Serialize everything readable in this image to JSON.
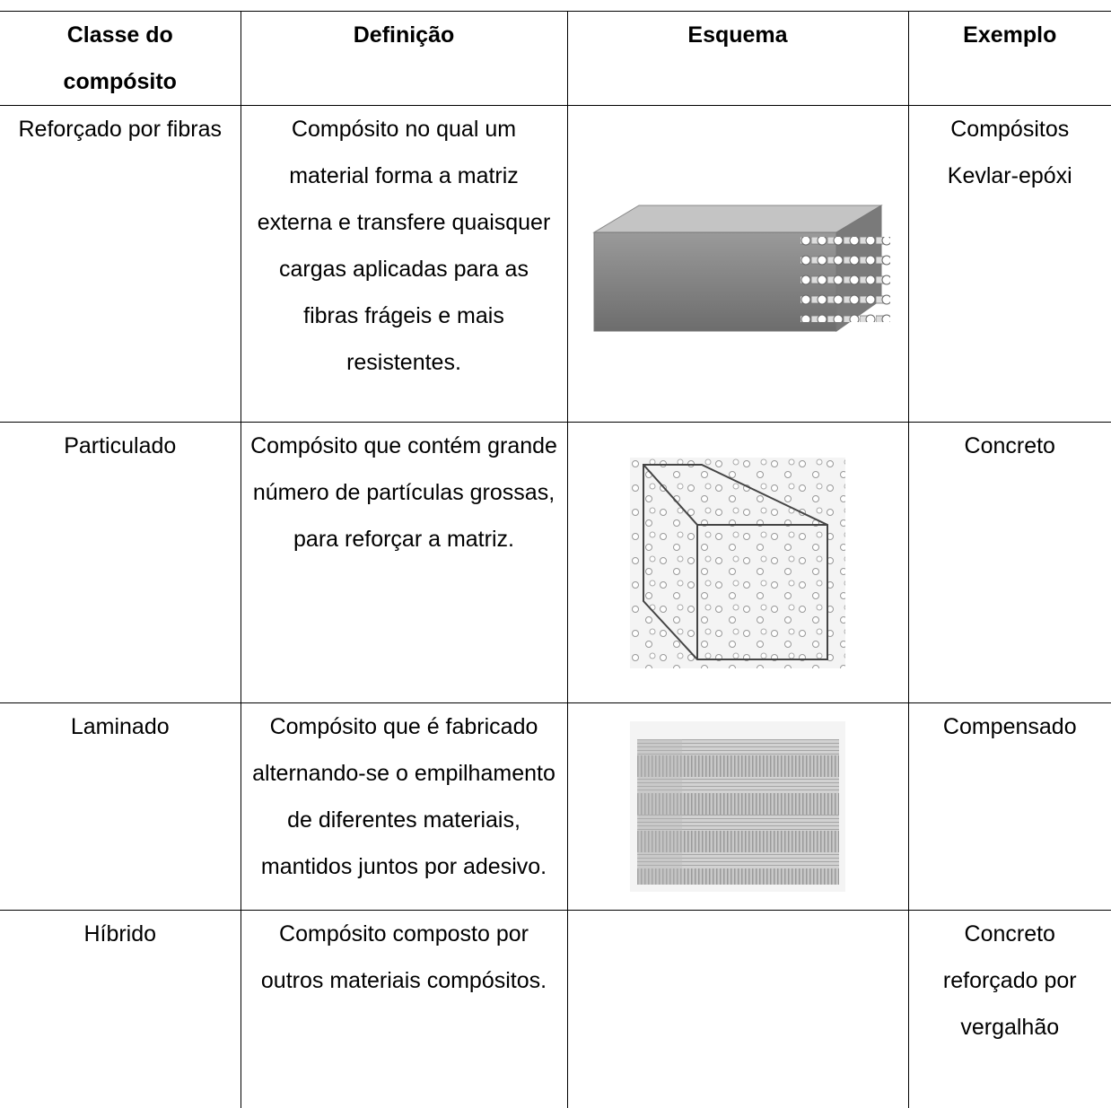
{
  "table": {
    "header": [
      "Classe do compósito",
      "Definição",
      "Esquema",
      "Exemplo"
    ],
    "rows": [
      {
        "class": "Reforçado por fibras",
        "definition": "Compósito no qual um material forma a matriz externa e transfere quaisquer cargas aplicadas para as fibras frágeis e mais resistentes.",
        "example": "Compósitos Kevlar-epóxi"
      },
      {
        "class": "Particulado",
        "definition": "Compósito que contém grande número de partículas grossas, para reforçar a matriz.",
        "example": "Concreto"
      },
      {
        "class": "Laminado",
        "definition": "Compósito que é fabricado alternando-se o empilhamento de diferentes materiais, mantidos juntos por adesivo.",
        "example": "Compensado"
      },
      {
        "class": "Híbrido",
        "definition": "Compósito composto por outros materiais compósitos.",
        "example": "Concreto reforçado por vergalhão"
      }
    ]
  }
}
